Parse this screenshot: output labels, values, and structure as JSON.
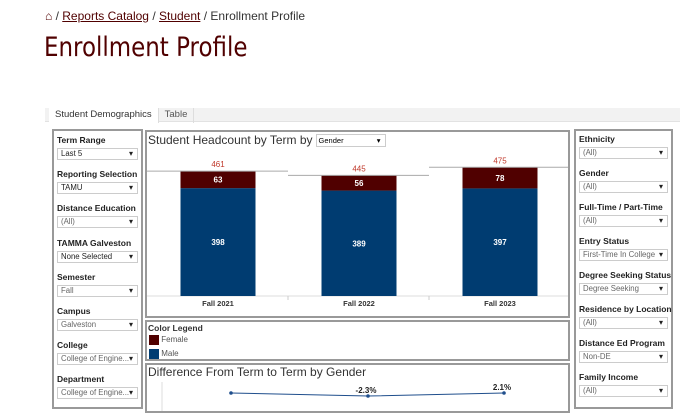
{
  "breadcrumb": {
    "home_icon": "home-icon",
    "items": [
      "Reports Catalog",
      "Student"
    ],
    "current": "Enrollment Profile"
  },
  "page_title": "Enrollment Profile",
  "tabs": [
    {
      "label": "Student Demographics",
      "active": true
    },
    {
      "label": "Table",
      "active": false
    }
  ],
  "left_filters": [
    {
      "label": "Term Range",
      "value": "Last 5"
    },
    {
      "label": "Reporting Selection",
      "value": "TAMU"
    },
    {
      "label": "Distance Education",
      "value": "(All)"
    },
    {
      "label": "TAMMA Galveston",
      "value": "None Selected"
    },
    {
      "label": "Semester",
      "value": "Fall"
    },
    {
      "label": "Campus",
      "value": "Galveston"
    },
    {
      "label": "College",
      "value": "College of Engine..."
    },
    {
      "label": "Department",
      "value": "College of Engine..."
    }
  ],
  "right_filters": [
    {
      "label": "Ethnicity",
      "value": "(All)"
    },
    {
      "label": "Gender",
      "value": "(All)"
    },
    {
      "label": "Full-Time / Part-Time",
      "value": "(All)"
    },
    {
      "label": "Entry Status",
      "value": "First-Time In College"
    },
    {
      "label": "Degree Seeking Status",
      "value": "Degree Seeking"
    },
    {
      "label": "Residence by Location",
      "value": "(All)"
    },
    {
      "label": "Distance Ed Program",
      "value": "Non-DE"
    },
    {
      "label": "Family Income",
      "value": "(All)"
    }
  ],
  "headcount": {
    "title": "Student Headcount by Term by",
    "dimension": "Gender"
  },
  "legend": {
    "title": "Color Legend",
    "items": [
      {
        "label": "Female",
        "color": "#500000"
      },
      {
        "label": "Male",
        "color": "#003c71"
      }
    ]
  },
  "difference": {
    "title": "Difference From Term to Term by Gender",
    "labels": [
      "",
      "-2.3%",
      "2.1%"
    ],
    "color": "#1f4e8c"
  },
  "chart_data": {
    "type": "bar",
    "stacked": true,
    "categories": [
      "Fall 2021",
      "Fall 2022",
      "Fall 2023"
    ],
    "series": [
      {
        "name": "Male",
        "values": [
          398,
          389,
          397
        ],
        "color": "#003c71"
      },
      {
        "name": "Female",
        "values": [
          63,
          56,
          78
        ],
        "color": "#500000"
      }
    ],
    "totals": [
      461,
      445,
      475
    ],
    "total_color": "#c0392b"
  }
}
